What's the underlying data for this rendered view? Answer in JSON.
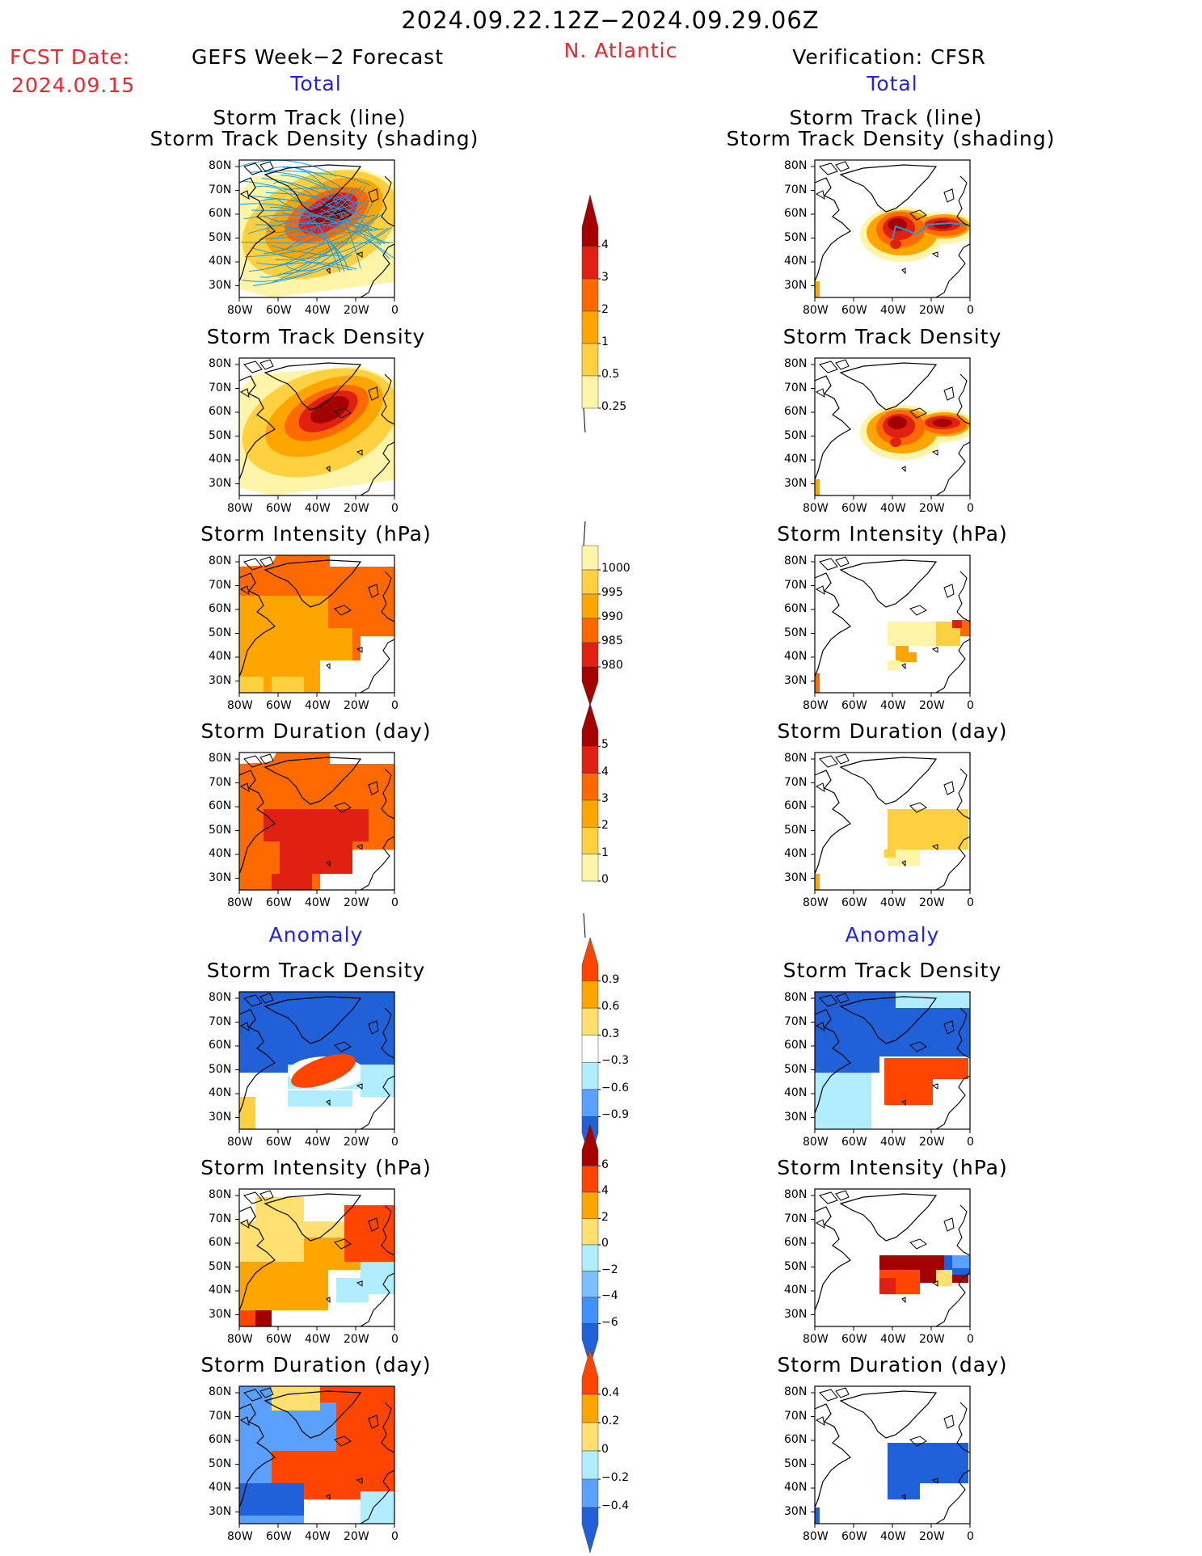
{
  "header": {
    "date_range": "2024.09.22.12Z−2024.09.29.06Z",
    "fcst_label": "FCST Date:",
    "fcst_date": "2024.09.15",
    "left_title": "GEFS Week−2 Forecast",
    "region": "N. Atlantic",
    "right_title": "Verification: CFSR",
    "total_left": "Total",
    "total_right": "Total",
    "anomaly_left": "Anomaly",
    "anomaly_right": "Anomaly"
  },
  "panels": {
    "track_line": "Storm Track (line)",
    "track_density_shading": "Storm Track Density (shading)",
    "track_density": "Storm Track Density",
    "intensity": "Storm Intensity (hPa)",
    "duration": "Storm Duration (day)"
  },
  "axes": {
    "lat_ticks": [
      "80N",
      "70N",
      "60N",
      "50N",
      "40N",
      "30N"
    ],
    "lon_ticks": [
      "80W",
      "60W",
      "40W",
      "20W",
      "0"
    ]
  },
  "colorbars": {
    "density": {
      "labels": [
        "4",
        "3",
        "2",
        "1",
        "0.5",
        "0.25"
      ],
      "colors": [
        "#a50000",
        "#e02010",
        "#ff6a00",
        "#ffa500",
        "#ffd040",
        "#fff5a8"
      ]
    },
    "intensity": {
      "labels": [
        "1000",
        "995",
        "990",
        "985",
        "980"
      ],
      "colors": [
        "#fff5a8",
        "#ffd040",
        "#ffa500",
        "#ff6a00",
        "#e02010",
        "#a50000"
      ]
    },
    "duration": {
      "labels": [
        "5",
        "4",
        "3",
        "2",
        "1",
        "0"
      ],
      "colors": [
        "#a50000",
        "#e02010",
        "#ff6a00",
        "#ffa500",
        "#ffd040",
        "#fff5a8"
      ]
    },
    "density_anom": {
      "labels": [
        "0.9",
        "0.6",
        "0.3",
        "−0.3",
        "−0.6",
        "−0.9"
      ],
      "colors": [
        "#ff4500",
        "#ffa500",
        "#ffe070",
        "#ffffff",
        "#b0eeff",
        "#5aa0ff",
        "#2060d8"
      ]
    },
    "intensity_anom": {
      "labels": [
        "6",
        "4",
        "2",
        "0",
        "−2",
        "−4",
        "−6"
      ],
      "colors": [
        "#a50000",
        "#ff4500",
        "#ffa500",
        "#ffe070",
        "#b0eeff",
        "#7ac0ff",
        "#4090ff",
        "#2060d8"
      ]
    },
    "duration_anom": {
      "labels": [
        "0.4",
        "0.2",
        "0",
        "−0.2",
        "−0.4"
      ],
      "colors": [
        "#ff4500",
        "#ffa500",
        "#ffe070",
        "#b0eeff",
        "#5aa0ff",
        "#2060d8"
      ]
    }
  },
  "colors": {
    "title_red": "#e8282e",
    "title_blue": "#2323e8",
    "track_line": "#1e9bdc"
  }
}
